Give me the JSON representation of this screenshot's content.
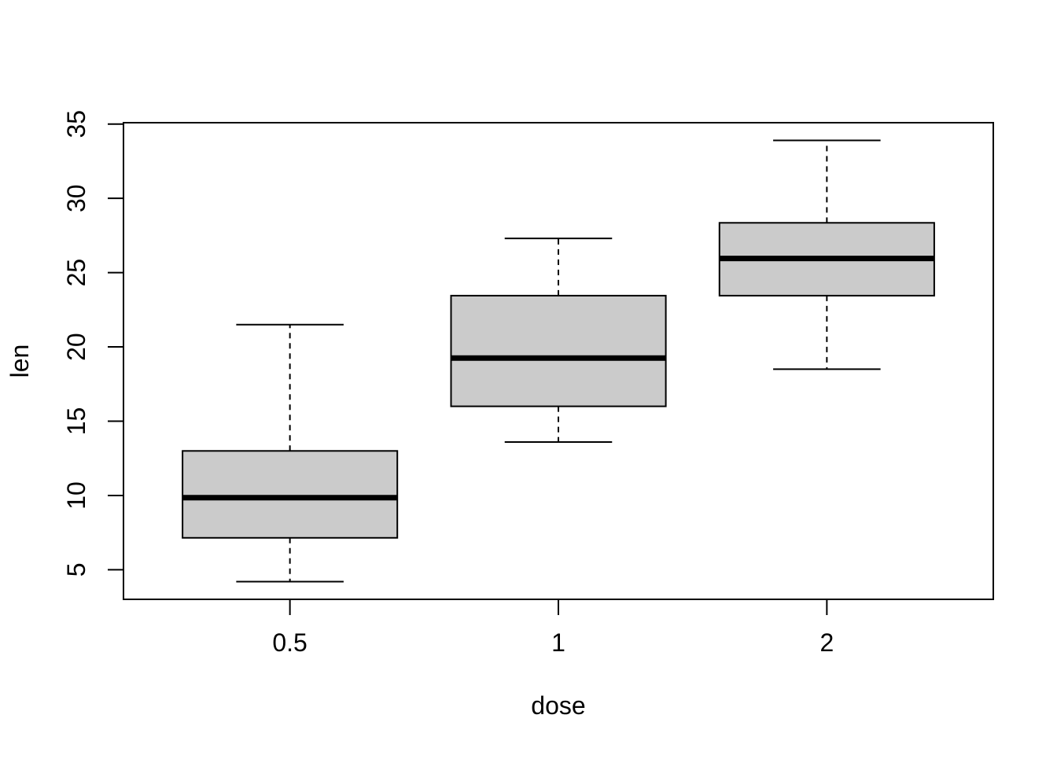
{
  "figure": {
    "title": "",
    "y_axis_label": "len",
    "x_axis_label": "dose"
  },
  "chart_data": {
    "type": "boxplot",
    "title": "",
    "xlabel": "dose",
    "ylabel": "len",
    "categories": [
      "0.5",
      "1",
      "2"
    ],
    "y_ticks": [
      5,
      10,
      15,
      20,
      25,
      30,
      35
    ],
    "ylim": [
      3.01,
      35.09
    ],
    "grid": false,
    "legend": null,
    "series": [
      {
        "category": "0.5",
        "lower_whisker": 4.2,
        "q1": 7.15,
        "median": 9.85,
        "q3": 13.0,
        "upper_whisker": 21.5,
        "outliers": []
      },
      {
        "category": "1",
        "lower_whisker": 13.6,
        "q1": 16.0,
        "median": 19.25,
        "q3": 23.45,
        "upper_whisker": 27.3,
        "outliers": []
      },
      {
        "category": "2",
        "lower_whisker": 18.5,
        "q1": 23.45,
        "median": 25.95,
        "q3": 28.35,
        "upper_whisker": 33.9,
        "outliers": []
      }
    ],
    "colors": {
      "box_fill": "#CBCBCB",
      "line": "#000000",
      "background": "#FFFFFF"
    }
  }
}
